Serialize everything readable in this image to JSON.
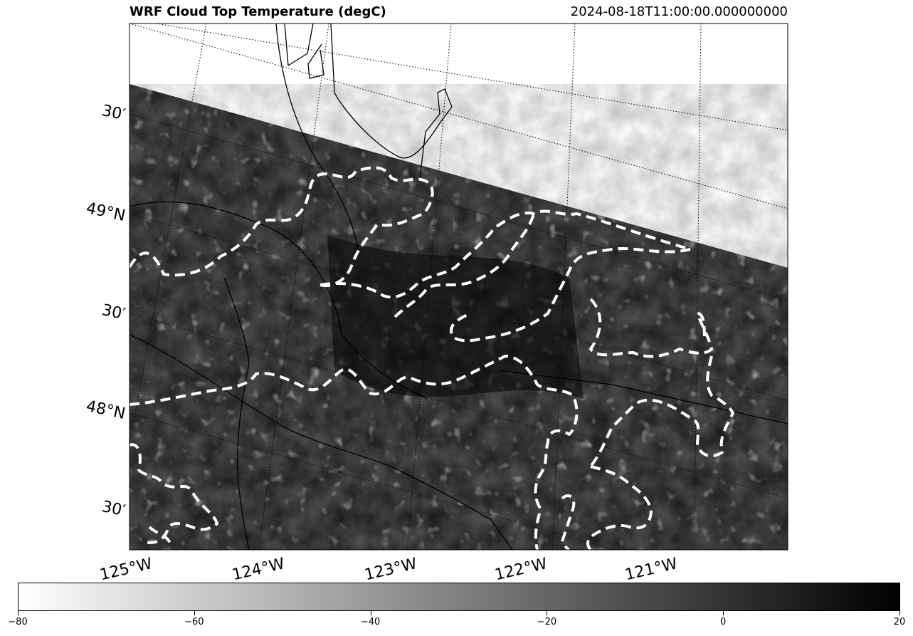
{
  "title": "WRF Cloud Top Temperature (degC)",
  "timestamp": "2024-08-18T11:00:00.000000000",
  "lat_labels": [
    "30′",
    "49°N",
    "30′",
    "48°N",
    "30′"
  ],
  "lon_labels": [
    "125°W",
    "124°W",
    "123°W",
    "122°W",
    "121°W"
  ],
  "colorbar": {
    "min": -80,
    "max": 20,
    "ticks": [
      "−80",
      "−60",
      "−40",
      "−20",
      "0",
      "20"
    ],
    "colormap": "gray_r",
    "color_low": "#ffffff",
    "color_high": "#000000"
  },
  "contour_color": "#ffffff",
  "coastline_color": "#000000"
}
